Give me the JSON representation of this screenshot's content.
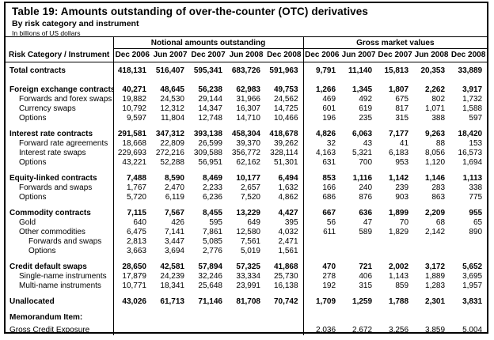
{
  "title": "Table 19: Amounts outstanding of over-the-counter (OTC) derivatives",
  "subtitle": "By risk category and instrument",
  "unit_note": "In billions of US dollars",
  "table": {
    "corner_header": "Risk Category / Instrument",
    "group_headers": [
      "Notional amounts outstanding",
      "Gross market values"
    ],
    "columns": [
      "Dec 2006",
      "Jun 2007",
      "Dec 2007",
      "Jun 2008",
      "Dec 2008"
    ],
    "rows": [
      {
        "label": "Total contracts",
        "bold": true,
        "indent": 0,
        "gap": null,
        "notional": [
          "418,131",
          "516,407",
          "595,341",
          "683,726",
          "591,963"
        ],
        "gross": [
          "9,791",
          "11,140",
          "15,813",
          "20,353",
          "33,889"
        ]
      },
      {
        "label": "Foreign exchange contracts",
        "bold": true,
        "indent": 0,
        "gap": "lg",
        "notional": [
          "40,271",
          "48,645",
          "56,238",
          "62,983",
          "49,753"
        ],
        "gross": [
          "1,266",
          "1,345",
          "1,807",
          "2,262",
          "3,917"
        ]
      },
      {
        "label": "Forwards and forex swaps",
        "bold": false,
        "indent": 1,
        "gap": null,
        "notional": [
          "19,882",
          "24,530",
          "29,144",
          "31,966",
          "24,562"
        ],
        "gross": [
          "469",
          "492",
          "675",
          "802",
          "1,732"
        ]
      },
      {
        "label": "Currency swaps",
        "bold": false,
        "indent": 1,
        "gap": null,
        "notional": [
          "10,792",
          "12,312",
          "14,347",
          "16,307",
          "14,725"
        ],
        "gross": [
          "601",
          "619",
          "817",
          "1,071",
          "1,588"
        ]
      },
      {
        "label": "Options",
        "bold": false,
        "indent": 1,
        "gap": null,
        "notional": [
          "9,597",
          "11,804",
          "12,748",
          "14,710",
          "10,466"
        ],
        "gross": [
          "196",
          "235",
          "315",
          "388",
          "597"
        ]
      },
      {
        "label": "Interest rate contracts",
        "bold": true,
        "indent": 0,
        "gap": "lg",
        "notional": [
          "291,581",
          "347,312",
          "393,138",
          "458,304",
          "418,678"
        ],
        "gross": [
          "4,826",
          "6,063",
          "7,177",
          "9,263",
          "18,420"
        ]
      },
      {
        "label": "Forward rate agreements",
        "bold": false,
        "indent": 1,
        "gap": null,
        "notional": [
          "18,668",
          "22,809",
          "26,599",
          "39,370",
          "39,262"
        ],
        "gross": [
          "32",
          "43",
          "41",
          "88",
          "153"
        ]
      },
      {
        "label": "Interest rate swaps",
        "bold": false,
        "indent": 1,
        "gap": null,
        "notional": [
          "229,693",
          "272,216",
          "309,588",
          "356,772",
          "328,114"
        ],
        "gross": [
          "4,163",
          "5,321",
          "6,183",
          "8,056",
          "16,573"
        ]
      },
      {
        "label": "Options",
        "bold": false,
        "indent": 1,
        "gap": null,
        "notional": [
          "43,221",
          "52,288",
          "56,951",
          "62,162",
          "51,301"
        ],
        "gross": [
          "631",
          "700",
          "953",
          "1,120",
          "1,694"
        ]
      },
      {
        "label": "Equity-linked contracts",
        "bold": true,
        "indent": 0,
        "gap": "lg",
        "notional": [
          "7,488",
          "8,590",
          "8,469",
          "10,177",
          "6,494"
        ],
        "gross": [
          "853",
          "1,116",
          "1,142",
          "1,146",
          "1,113"
        ]
      },
      {
        "label": "Forwards and swaps",
        "bold": false,
        "indent": 1,
        "gap": null,
        "notional": [
          "1,767",
          "2,470",
          "2,233",
          "2,657",
          "1,632"
        ],
        "gross": [
          "166",
          "240",
          "239",
          "283",
          "338"
        ]
      },
      {
        "label": "Options",
        "bold": false,
        "indent": 1,
        "gap": null,
        "notional": [
          "5,720",
          "6,119",
          "6,236",
          "7,520",
          "4,862"
        ],
        "gross": [
          "686",
          "876",
          "903",
          "863",
          "775"
        ]
      },
      {
        "label": "Commodity contracts",
        "bold": true,
        "indent": 0,
        "gap": "lg",
        "notional": [
          "7,115",
          "7,567",
          "8,455",
          "13,229",
          "4,427"
        ],
        "gross": [
          "667",
          "636",
          "1,899",
          "2,209",
          "955"
        ]
      },
      {
        "label": "Gold",
        "bold": false,
        "indent": 1,
        "gap": null,
        "notional": [
          "640",
          "426",
          "595",
          "649",
          "395"
        ],
        "gross": [
          "56",
          "47",
          "70",
          "68",
          "65"
        ]
      },
      {
        "label": "Other commodities",
        "bold": false,
        "indent": 1,
        "gap": null,
        "notional": [
          "6,475",
          "7,141",
          "7,861",
          "12,580",
          "4,032"
        ],
        "gross": [
          "611",
          "589",
          "1,829",
          "2,142",
          "890"
        ]
      },
      {
        "label": "Forwards and swaps",
        "bold": false,
        "indent": 2,
        "gap": null,
        "notional": [
          "2,813",
          "3,447",
          "5,085",
          "7,561",
          "2,471"
        ],
        "gross": [
          "",
          "",
          "",
          "",
          ""
        ]
      },
      {
        "label": "Options",
        "bold": false,
        "indent": 2,
        "gap": null,
        "notional": [
          "3,663",
          "3,694",
          "2,776",
          "5,019",
          "1,561"
        ],
        "gross": [
          "",
          "",
          "",
          "",
          ""
        ]
      },
      {
        "label": "Credit default swaps",
        "bold": true,
        "indent": 0,
        "gap": "lg",
        "notional": [
          "28,650",
          "42,581",
          "57,894",
          "57,325",
          "41,868"
        ],
        "gross": [
          "470",
          "721",
          "2,002",
          "3,172",
          "5,652"
        ]
      },
      {
        "label": "Single-name instruments",
        "bold": false,
        "indent": 1,
        "gap": null,
        "notional": [
          "17,879",
          "24,239",
          "32,246",
          "33,334",
          "25,730"
        ],
        "gross": [
          "278",
          "406",
          "1,143",
          "1,889",
          "3,695"
        ]
      },
      {
        "label": "Multi-name instruments",
        "bold": false,
        "indent": 1,
        "gap": null,
        "notional": [
          "10,771",
          "18,341",
          "25,648",
          "23,991",
          "16,138"
        ],
        "gross": [
          "192",
          "315",
          "859",
          "1,283",
          "1,957"
        ]
      },
      {
        "label": "Unallocated",
        "bold": true,
        "indent": 0,
        "gap": "lg",
        "notional": [
          "43,026",
          "61,713",
          "71,146",
          "81,708",
          "70,742"
        ],
        "gross": [
          "1,709",
          "1,259",
          "1,788",
          "2,301",
          "3,831"
        ]
      },
      {
        "label": "Memorandum Item:",
        "bold": true,
        "indent": 0,
        "gap": "lg",
        "notional": [
          "",
          "",
          "",
          "",
          ""
        ],
        "gross": [
          "",
          "",
          "",
          "",
          ""
        ]
      },
      {
        "label": "Gross Credit Exposure",
        "bold": false,
        "indent": 0,
        "gap": "sm",
        "notional": [
          "",
          "",
          "",
          "",
          ""
        ],
        "gross": [
          "2,036",
          "2,672",
          "3,256",
          "3,859",
          "5,004"
        ]
      }
    ]
  }
}
